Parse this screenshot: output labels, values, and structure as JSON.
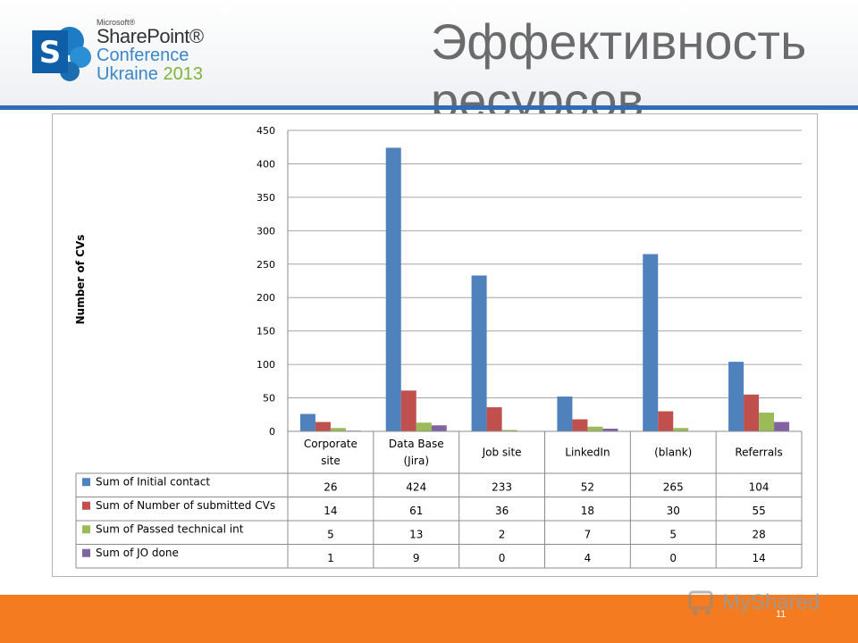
{
  "header": {
    "title": "Эффективность ресурсов",
    "logo": {
      "microsoft": "Microsoft®",
      "sharepoint": "SharePoint®",
      "conference": "Conference",
      "ukraine": "Ukraine",
      "year": "2013"
    }
  },
  "footer": {
    "page_number": "11",
    "watermark": "MyShared"
  },
  "colors": {
    "accent_blue": "#2e6db4",
    "footer_orange": "#f47b20"
  },
  "chart_data": {
    "type": "bar",
    "title": "",
    "xlabel": "",
    "ylabel": "Number of CVs",
    "ylim": [
      0,
      450
    ],
    "yticks": [
      0,
      50,
      100,
      150,
      200,
      250,
      300,
      350,
      400,
      450
    ],
    "grid": true,
    "legend": "data-table",
    "categories": [
      "Corporate site",
      "Data Base (Jira)",
      "Job site",
      "LinkedIn",
      "(blank)",
      "Referrals"
    ],
    "series": [
      {
        "name": "Sum of Initial contact",
        "color": "#4f81bd",
        "values": [
          26,
          424,
          233,
          52,
          265,
          104
        ]
      },
      {
        "name": "Sum of Number of submitted CVs",
        "color": "#c0504d",
        "values": [
          14,
          61,
          36,
          18,
          30,
          55
        ]
      },
      {
        "name": "Sum of Passed technical int",
        "color": "#9bbb59",
        "values": [
          5,
          13,
          2,
          7,
          5,
          28
        ]
      },
      {
        "name": "Sum of JO done",
        "color": "#8064a2",
        "values": [
          1,
          9,
          0,
          4,
          0,
          14
        ]
      }
    ]
  }
}
